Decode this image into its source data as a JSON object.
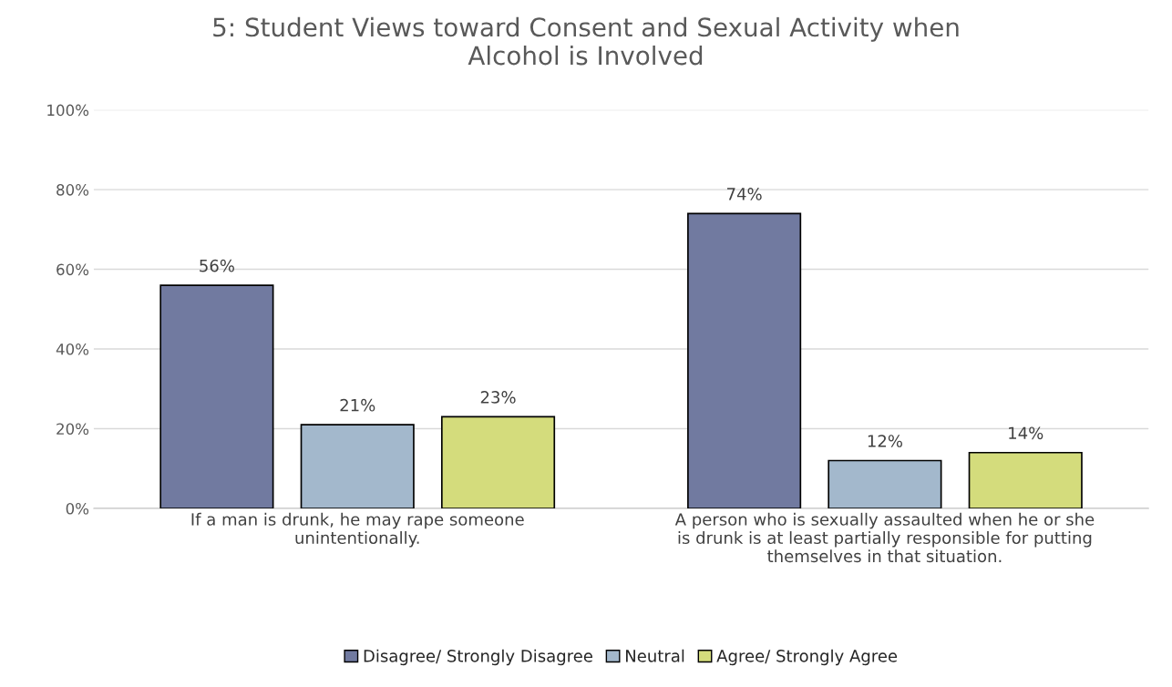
{
  "chart_data": {
    "type": "bar",
    "title": "5: Student Views toward Consent and Sexual Activity when\nAlcohol is Involved",
    "categories": [
      "If a man is drunk, he may rape someone\nunintentionally.",
      "A person who is sexually assaulted when he or she\nis drunk is at least partially responsible for putting\nthemselves in that situation."
    ],
    "series": [
      {
        "name": "Disagree/ Strongly Disagree",
        "color": "#717aa0",
        "values": [
          56,
          74
        ],
        "value_labels": [
          "56%",
          "74%"
        ]
      },
      {
        "name": "Neutral",
        "color": "#a3b8cc",
        "values": [
          21,
          12
        ],
        "value_labels": [
          "21%",
          "12%"
        ]
      },
      {
        "name": "Agree/ Strongly Agree",
        "color": "#d4dc7c",
        "values": [
          23,
          14
        ],
        "value_labels": [
          "23%",
          "14%"
        ]
      }
    ],
    "ylim": [
      0,
      100
    ],
    "yticks": [
      {
        "value": 0,
        "label": "0%"
      },
      {
        "value": 20,
        "label": "20%"
      },
      {
        "value": 40,
        "label": "40%"
      },
      {
        "value": 60,
        "label": "60%"
      },
      {
        "value": 80,
        "label": "80%"
      },
      {
        "value": 100,
        "label": "100%"
      }
    ],
    "grid": "y",
    "legend": "bottom"
  }
}
